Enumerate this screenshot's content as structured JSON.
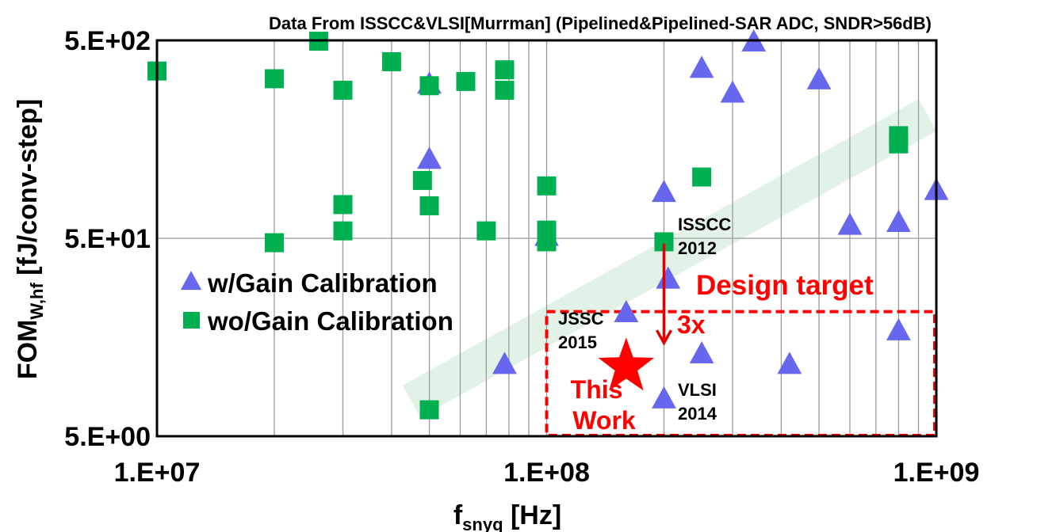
{
  "chart_data": {
    "type": "scatter",
    "title": "Data From ISSCC&VLSI[Murrman] (Pipelined&Pipelined-SAR ADC, SNDR>56dB)",
    "xlabel": {
      "main": "f",
      "sub": "snyq",
      "unit": " [Hz]"
    },
    "ylabel": {
      "main": "FOM",
      "sub": "W,hf",
      "unit": " [fJ/conv-step]"
    },
    "x_scale": "log",
    "y_scale": "log",
    "xlim": [
      10000000.0,
      1000000000.0
    ],
    "ylim": [
      5,
      500
    ],
    "x_ticks": [
      {
        "value": 10000000.0,
        "label": "1.E+07"
      },
      {
        "value": 100000000.0,
        "label": "1.E+08"
      },
      {
        "value": 1000000000.0,
        "label": "1.E+09"
      }
    ],
    "y_ticks": [
      {
        "value": 500,
        "label": "5.E+02"
      },
      {
        "value": 50,
        "label": "5.E+01"
      },
      {
        "value": 5,
        "label": "5.E+00"
      }
    ],
    "grid": "vertical log gridlines, horizontal at major ticks",
    "legend_position": "left-middle",
    "series": [
      {
        "name": "w/Gain Calibration",
        "marker": "triangle",
        "color": "#6666ee",
        "points": [
          [
            50000000.0,
            300
          ],
          [
            50000000.0,
            125
          ],
          [
            100000000.0,
            51
          ],
          [
            200000000.0,
            85
          ],
          [
            340000000.0,
            490
          ],
          [
            250000000.0,
            360
          ],
          [
            300000000.0,
            270
          ],
          [
            500000000.0,
            315
          ],
          [
            1000000000.0,
            87
          ],
          [
            600000000.0,
            58
          ],
          [
            800000000.0,
            60
          ],
          [
            205000000.0,
            31
          ],
          [
            160000000.0,
            21
          ],
          [
            800000000.0,
            17
          ],
          [
            250000000.0,
            13
          ],
          [
            420000000.0,
            11.5
          ],
          [
            78000000.0,
            11.5
          ],
          [
            200000000.0,
            7.7
          ]
        ]
      },
      {
        "name": "wo/Gain Calibration",
        "marker": "square",
        "color": "#00b050",
        "points": [
          [
            10000000.0,
            350
          ],
          [
            26000000.0,
            495
          ],
          [
            20000000.0,
            320
          ],
          [
            30000000.0,
            280
          ],
          [
            40000000.0,
            390
          ],
          [
            50000000.0,
            295
          ],
          [
            62000000.0,
            310
          ],
          [
            78000000.0,
            355
          ],
          [
            78000000.0,
            280
          ],
          [
            800000000.0,
            165
          ],
          [
            800000000.0,
            150
          ],
          [
            250000000.0,
            102
          ],
          [
            48000000.0,
            98
          ],
          [
            100000000.0,
            92
          ],
          [
            30000000.0,
            74
          ],
          [
            50000000.0,
            73
          ],
          [
            30000000.0,
            54.5
          ],
          [
            70000000.0,
            54.5
          ],
          [
            100000000.0,
            55
          ],
          [
            20000000.0,
            47.5
          ],
          [
            100000000.0,
            48
          ],
          [
            200000000.0,
            48
          ],
          [
            50000000.0,
            6.8
          ]
        ]
      }
    ],
    "this_work": {
      "label_line1": "This",
      "label_line2": "Work",
      "x": 160000000.0,
      "y": 11.2,
      "color": "#ff0000"
    },
    "annotations": [
      {
        "text": "ISSCC",
        "text2": "2012"
      },
      {
        "text": "JSSC",
        "text2": "2015"
      },
      {
        "text": "VLSI",
        "text2": "2014"
      },
      {
        "text": "Design target"
      },
      {
        "text": "3x"
      }
    ],
    "arrow": {
      "x": 200000000.0,
      "y_from": 47,
      "y_to": 14.8,
      "color": "#e00000"
    },
    "design_target_box": {
      "x": [
        100000000.0,
        1000000000.0
      ],
      "y": [
        5,
        21.3
      ],
      "color": "#ff0000"
    },
    "trend_band": {
      "from": [
        45000000.0,
        7.5
      ],
      "to": [
        950000000.0,
        210
      ],
      "color": "#e2f2e6"
    }
  }
}
